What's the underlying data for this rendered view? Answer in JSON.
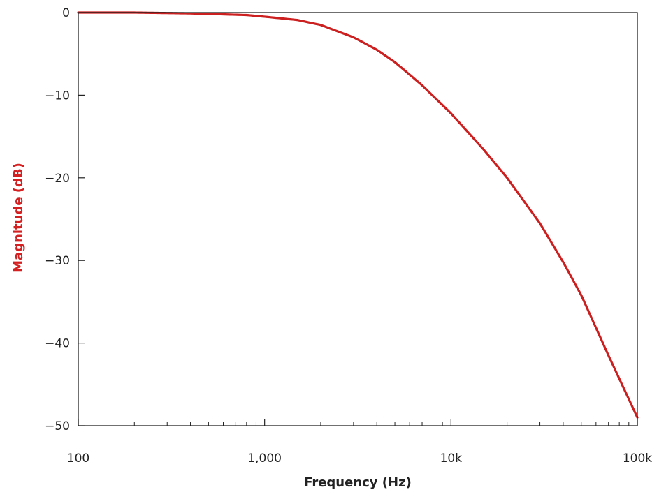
{
  "chart_data": {
    "type": "line",
    "title": "",
    "xlabel": "Frequency (Hz)",
    "ylabel": "Magnitude (dB)",
    "x_scale": "log",
    "xlim": [
      100,
      100000
    ],
    "ylim": [
      -50,
      0
    ],
    "x_ticks": [
      {
        "value": 100,
        "label": "100"
      },
      {
        "value": 1000,
        "label": "1,000"
      },
      {
        "value": 10000,
        "label": "10k"
      },
      {
        "value": 100000,
        "label": "100k"
      }
    ],
    "y_ticks": [
      {
        "value": 0,
        "label": "0"
      },
      {
        "value": -10,
        "label": "−10"
      },
      {
        "value": -20,
        "label": "−20"
      },
      {
        "value": -30,
        "label": "−30"
      },
      {
        "value": -40,
        "label": "−40"
      },
      {
        "value": -50,
        "label": "−50"
      }
    ],
    "grid": false,
    "legend": "none",
    "series": [
      {
        "color": "#cc1f1f",
        "x": [
          100,
          200,
          400,
          800,
          1000,
          1500,
          2000,
          3000,
          4000,
          5000,
          7000,
          10000,
          15000,
          20000,
          30000,
          40000,
          50000,
          70000,
          100000
        ],
        "y": [
          0,
          0,
          -0.1,
          -0.3,
          -0.5,
          -0.9,
          -1.5,
          -3.0,
          -4.5,
          -6.0,
          -8.8,
          -12.2,
          -16.6,
          -20.0,
          -25.5,
          -30.2,
          -34.2,
          -41.5,
          -49.0
        ]
      }
    ]
  },
  "colors": {
    "line": "#cc1f1f",
    "ylabel": "#d42020",
    "axis": "#222222"
  }
}
